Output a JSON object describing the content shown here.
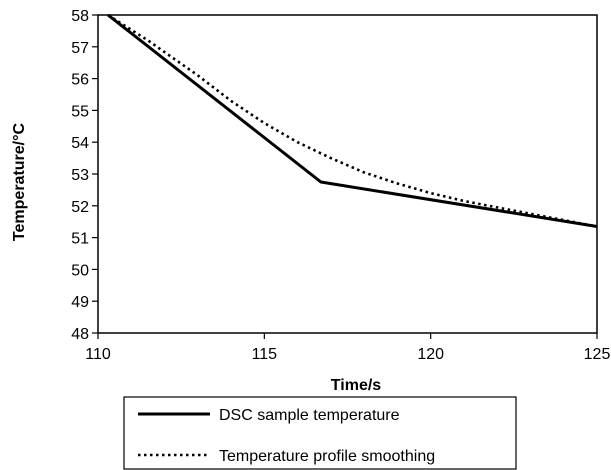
{
  "chart_data": {
    "type": "line",
    "title": "",
    "xlabel": "Time/s",
    "ylabel": "Temperature/°C",
    "xlim": [
      110,
      125
    ],
    "ylim": [
      48,
      58
    ],
    "xticks": [
      110,
      115,
      120,
      125
    ],
    "yticks": [
      48,
      49,
      50,
      51,
      52,
      53,
      54,
      55,
      56,
      57,
      58
    ],
    "grid": false,
    "legend_position": "bottom",
    "series": [
      {
        "name": "DSC sample temperature",
        "style": "solid",
        "color": "#000000",
        "points": [
          [
            110.3,
            58.0
          ],
          [
            116.7,
            52.75
          ],
          [
            125.0,
            51.35
          ]
        ]
      },
      {
        "name": "Temperature profile smoothing",
        "style": "dotted",
        "color": "#000000",
        "points": [
          [
            110.3,
            58.0
          ],
          [
            111.5,
            57.2
          ],
          [
            113.0,
            56.1
          ],
          [
            114.0,
            55.3
          ],
          [
            115.0,
            54.6
          ],
          [
            116.0,
            54.0
          ],
          [
            117.0,
            53.5
          ],
          [
            118.0,
            53.05
          ],
          [
            119.0,
            52.7
          ],
          [
            120.0,
            52.4
          ],
          [
            121.0,
            52.15
          ],
          [
            122.0,
            51.95
          ],
          [
            123.0,
            51.75
          ],
          [
            124.0,
            51.55
          ],
          [
            125.0,
            51.35
          ]
        ]
      }
    ]
  }
}
